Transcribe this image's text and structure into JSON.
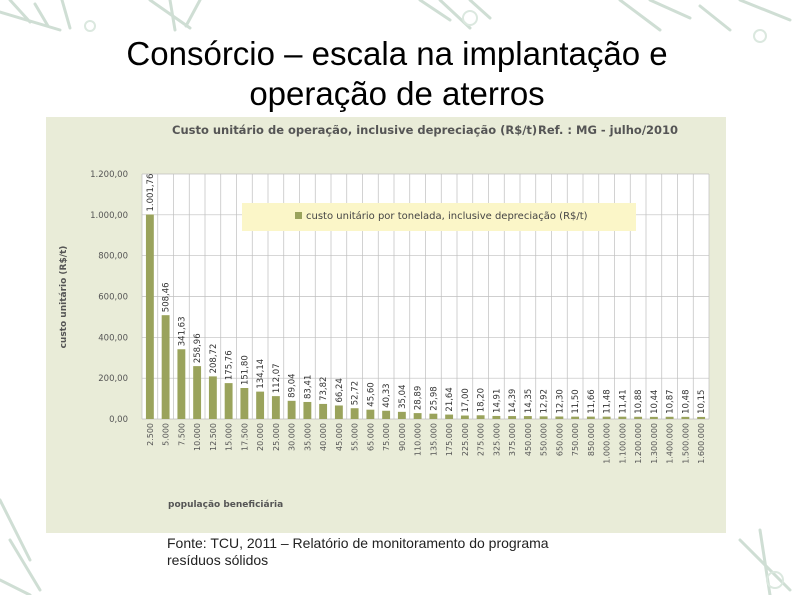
{
  "slide": {
    "title_line1": "Consórcio – escala na implantação e",
    "title_line2": "operação de aterros",
    "source_line1": "Fonte: TCU, 2011 – Relatório de monitoramento do programa",
    "source_line2": "resíduos sólidos"
  },
  "colors": {
    "bar": "#9aa35c",
    "legend_bg": "#fbf6c8",
    "panel_bg": "#e9ecd8",
    "plot_bg": "#ffffff",
    "grid": "#bfbfbf",
    "text": "#555555"
  },
  "chart_data": {
    "type": "bar",
    "title": "Custo unitário de operação, inclusive depreciação (R$/t)",
    "subtitle": "Ref. : MG - julho/2010",
    "legend": "custo unitário por tonelada, inclusive depreciação (R$/t)",
    "xlabel": "população beneficiária",
    "ylabel": "custo unitário (R$/t)",
    "ylim": [
      0,
      1200
    ],
    "yticks": [
      "0,00",
      "200,00",
      "400,00",
      "600,00",
      "800,00",
      "1.000,00",
      "1.200,00"
    ],
    "categories": [
      "2.500",
      "5.000",
      "7.500",
      "10.000",
      "12.500",
      "15.000",
      "17.500",
      "20.000",
      "25.000",
      "30.000",
      "35.000",
      "40.000",
      "45.000",
      "55.000",
      "65.000",
      "75.000",
      "90.000",
      "110.000",
      "135.000",
      "175.000",
      "225.000",
      "275.000",
      "325.000",
      "375.000",
      "450.000",
      "550.000",
      "650.000",
      "750.000",
      "850.000",
      "1.000.000",
      "1.100.000",
      "1.200.000",
      "1.300.000",
      "1.400.000",
      "1.500.000",
      "1.600.000"
    ],
    "values": [
      1001.76,
      508.46,
      341.63,
      258.96,
      208.72,
      175.76,
      151.8,
      134.14,
      112.07,
      89.04,
      83.41,
      73.82,
      66.24,
      52.72,
      45.6,
      40.33,
      35.04,
      28.89,
      25.98,
      21.64,
      17.0,
      18.2,
      14.91,
      14.39,
      14.35,
      12.92,
      12.3,
      11.5,
      11.66,
      11.48,
      11.41,
      10.88,
      10.44,
      10.87,
      10.48,
      10.15
    ],
    "value_labels": [
      "1.001,76",
      "508,46",
      "341,63",
      "258,96",
      "208,72",
      "175,76",
      "151,80",
      "134,14",
      "112,07",
      "89,04",
      "83,41",
      "73,82",
      "66,24",
      "52,72",
      "45,60",
      "40,33",
      "35,04",
      "28,89",
      "25,98",
      "21,64",
      "17,00",
      "18,20",
      "14,91",
      "14,39",
      "14,35",
      "12,92",
      "12,30",
      "11,50",
      "11,66",
      "11,48",
      "11,41",
      "10,88",
      "10,44",
      "10,87",
      "10,48",
      "10,15"
    ]
  }
}
